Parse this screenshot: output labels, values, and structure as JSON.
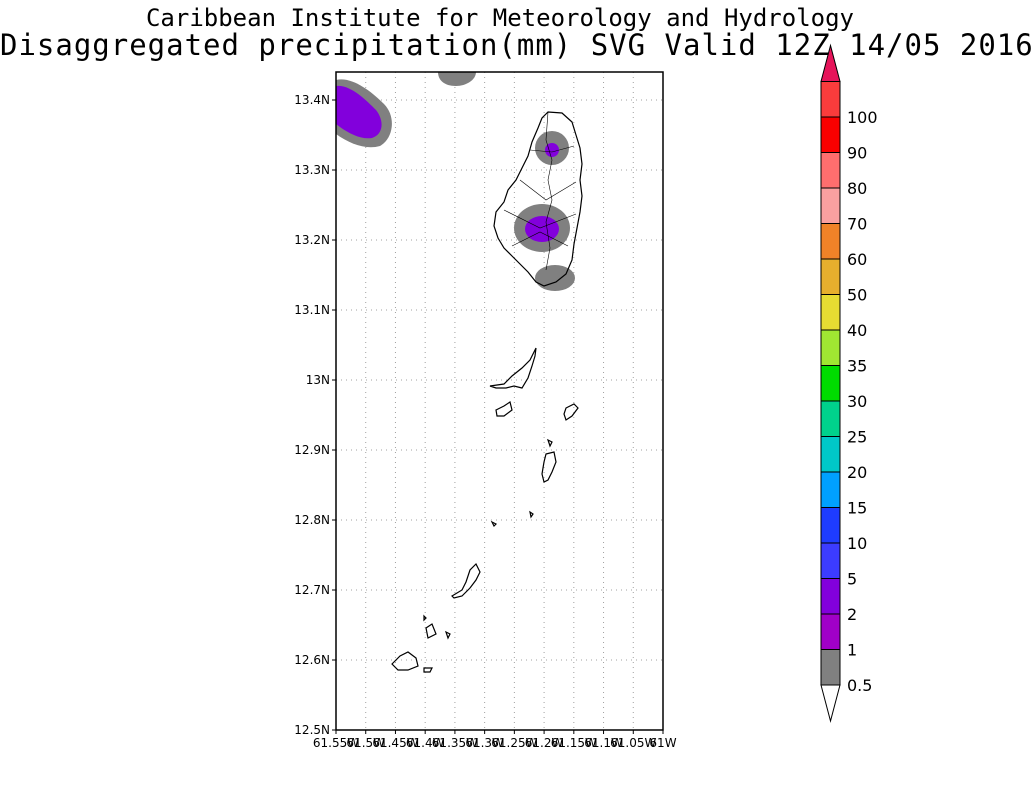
{
  "header": {
    "line1": "Caribbean Institute for Meteorology and Hydrology",
    "line2": "Disaggregated precipitation(mm) SVG Valid 12Z 14/05 2016"
  },
  "map": {
    "lat_labels": [
      "12.5N",
      "12.6N",
      "12.7N",
      "12.8N",
      "12.9N",
      "13N",
      "13.1N",
      "13.2N",
      "13.3N",
      "13.4N"
    ],
    "lon_labels": [
      "61.55W",
      "61.5W",
      "61.45W",
      "61.4W",
      "61.35W",
      "61.3W",
      "61.25W",
      "61.2W",
      "61.15W",
      "61.1W",
      "61.05W",
      "61W"
    ],
    "lat_range": [
      12.5,
      13.44
    ],
    "lon_range": [
      -61.55,
      -61.0
    ],
    "grid": true
  },
  "colorbar": {
    "labels": [
      "0.5",
      "1",
      "2",
      "5",
      "10",
      "15",
      "20",
      "25",
      "30",
      "35",
      "40",
      "50",
      "60",
      "70",
      "80",
      "90",
      "100"
    ],
    "colors": [
      "#808080",
      "#a000c8",
      "#8200dc",
      "#3c3cff",
      "#1e3cff",
      "#00a0ff",
      "#00c8c8",
      "#00d28c",
      "#00dc00",
      "#a0e632",
      "#e6dc32",
      "#e6af2d",
      "#f08228",
      "#faa0a0",
      "#ff6e6e",
      "#fa0000",
      "#fa3c3c"
    ],
    "overflow_color": "#e6145a"
  },
  "precip_colors": {
    "p05": "#808080",
    "p1": "#a000c8",
    "p2": "#8200dc"
  }
}
